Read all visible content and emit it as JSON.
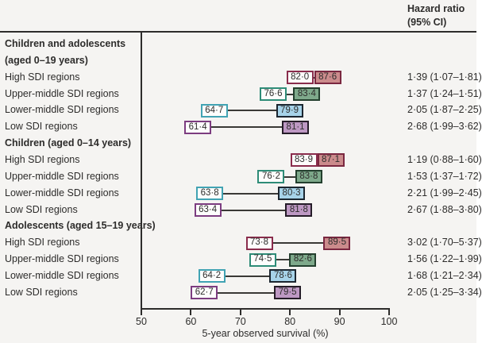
{
  "figure": {
    "right_column_header_line1": "Hazard ratio",
    "right_column_header_line2": "(95% CI)"
  },
  "chart_data": {
    "type": "forest",
    "xlabel": "5-year observed survival (%)",
    "xlim": [
      50,
      100
    ],
    "xticks": [
      "50",
      "60",
      "70",
      "80",
      "90",
      "100"
    ],
    "xtick_values": [
      50,
      60,
      70,
      80,
      90,
      100
    ],
    "right_column_header": [
      "Hazard ratio",
      "(95% CI)"
    ],
    "series_colors": {
      "high-sdi": {
        "open_border": "#8a2c4c",
        "fill": "#cb8b8c",
        "fill_border": "#7a2740"
      },
      "upper-middle-sdi": {
        "open_border": "#2e8c77",
        "fill": "#7ea98b",
        "fill_border": "#233f2e"
      },
      "lower-middle-sdi": {
        "open_border": "#41a3b3",
        "fill": "#a7d3e9",
        "fill_border": "#1c2630"
      },
      "low-sdi": {
        "open_border": "#7c3c80",
        "fill": "#bd98c3",
        "fill_border": "#251c28"
      }
    },
    "groups": [
      {
        "header_lines": [
          "Children and adolescents",
          "(aged 0–19 years)"
        ],
        "rows": [
          {
            "label": "High SDI regions",
            "series": "high-sdi",
            "low_value": 82.0,
            "high_value": 87.6,
            "low_label": "82·0",
            "high_label": "87·6",
            "hazard_ratio": "1·39 (1·07–1·81)"
          },
          {
            "label": "Upper-middle SDI regions",
            "series": "upper-middle-sdi",
            "low_value": 76.6,
            "high_value": 83.4,
            "low_label": "76·6",
            "high_label": "83·4",
            "hazard_ratio": "1·37 (1·24–1·51)"
          },
          {
            "label": "Lower-middle SDI regions",
            "series": "lower-middle-sdi",
            "low_value": 64.7,
            "high_value": 79.9,
            "low_label": "64·7",
            "high_label": "79·9",
            "hazard_ratio": "2·05 (1·87–2·25)"
          },
          {
            "label": "Low SDI regions",
            "series": "low-sdi",
            "low_value": 61.4,
            "high_value": 81.1,
            "low_label": "61·4",
            "high_label": "81·1",
            "hazard_ratio": "2·68 (1·99–3·62)"
          }
        ]
      },
      {
        "header_lines": [
          "Children (aged 0–14 years)"
        ],
        "rows": [
          {
            "label": "High SDI regions",
            "series": "high-sdi",
            "low_value": 83.9,
            "high_value": 87.1,
            "low_label": "83·9",
            "high_label": "87·1",
            "hazard_ratio": "1·19 (0·88–1·60)"
          },
          {
            "label": "Upper-middle SDI regions",
            "series": "upper-middle-sdi",
            "low_value": 76.2,
            "high_value": 83.8,
            "low_label": "76·2",
            "high_label": "83·8",
            "hazard_ratio": "1·53 (1·37–1·72)"
          },
          {
            "label": "Lower-middle SDI regions",
            "series": "lower-middle-sdi",
            "low_value": 63.8,
            "high_value": 80.3,
            "low_label": "63·8",
            "high_label": "80·3",
            "hazard_ratio": "2·21 (1·99–2·45)"
          },
          {
            "label": "Low SDI regions",
            "series": "low-sdi",
            "low_value": 63.4,
            "high_value": 81.8,
            "low_label": "63·4",
            "high_label": "81·8",
            "hazard_ratio": "2·67 (1·88–3·80)"
          }
        ]
      },
      {
        "header_lines": [
          "Adolescents (aged 15–19 years)"
        ],
        "rows": [
          {
            "label": "High SDI regions",
            "series": "high-sdi",
            "low_value": 73.8,
            "high_value": 89.5,
            "low_label": "73·8",
            "high_label": "89·5",
            "hazard_ratio": "3·02 (1·70–5·37)"
          },
          {
            "label": "Upper-middle SDI regions",
            "series": "upper-middle-sdi",
            "low_value": 74.5,
            "high_value": 82.6,
            "low_label": "74·5",
            "high_label": "82·6",
            "hazard_ratio": "1·56 (1·22–1·99)"
          },
          {
            "label": "Lower-middle SDI regions",
            "series": "lower-middle-sdi",
            "low_value": 64.2,
            "high_value": 78.6,
            "low_label": "64·2",
            "high_label": "78·6",
            "hazard_ratio": "1·68 (1·21–2·34)"
          },
          {
            "label": "Low SDI regions",
            "series": "low-sdi",
            "low_value": 62.7,
            "high_value": 79.5,
            "low_label": "62·7",
            "high_label": "79·5",
            "hazard_ratio": "2·05 (1·25–3·34)"
          }
        ]
      }
    ]
  }
}
